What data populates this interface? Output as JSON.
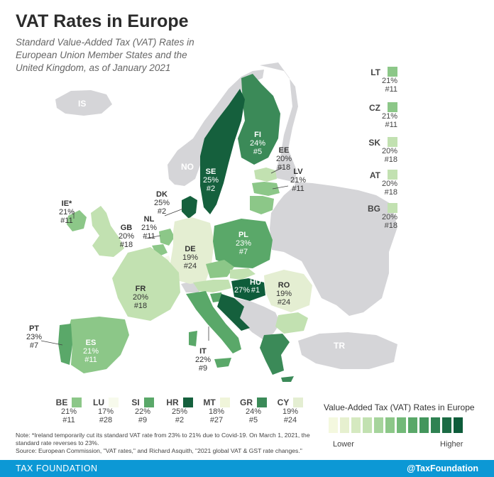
{
  "header": {
    "title": "VAT Rates in Europe",
    "subtitle": "Standard Value-Added Tax (VAT) Rates in European Union Member States and the United Kingdom, as of January 2021"
  },
  "colors": {
    "scale": [
      "#f4f8df",
      "#e6f0cf",
      "#d5e9c0",
      "#c2e1b1",
      "#a6d49c",
      "#8cc788",
      "#72b978",
      "#5aa869",
      "#43965c",
      "#2f8252",
      "#1b6b44",
      "#0e5c3a"
    ],
    "non_eu": "#d5d5d8",
    "rank_1_27": "#0e5c3a"
  },
  "map_labels": {
    "IS": "IS",
    "NO": "NO",
    "TR": "TR",
    "FI": {
      "code": "FI",
      "rate": "24%",
      "rank": "#5"
    },
    "SE": {
      "code": "SE",
      "rate": "25%",
      "rank": "#2"
    },
    "EE": {
      "code": "EE",
      "rate": "20%",
      "rank": "#18"
    },
    "LV": {
      "code": "LV",
      "rate": "21%",
      "rank": "#11"
    },
    "DK": {
      "code": "DK",
      "rate": "25%",
      "rank": "#2"
    },
    "IE": {
      "code": "IE*",
      "rate": "21%",
      "rank": "#11"
    },
    "GB": {
      "code": "GB",
      "rate": "20%",
      "rank": "#18"
    },
    "NL": {
      "code": "NL",
      "rate": "21%",
      "rank": "#11"
    },
    "DE": {
      "code": "DE",
      "rate": "19%",
      "rank": "#24"
    },
    "PL": {
      "code": "PL",
      "rate": "23%",
      "rank": "#7"
    },
    "FR": {
      "code": "FR",
      "rate": "20%",
      "rank": "#18"
    },
    "HU": {
      "code": "HU",
      "rate": "27%",
      "rank": "#1"
    },
    "RO": {
      "code": "RO",
      "rate": "19%",
      "rank": "#24"
    },
    "PT": {
      "code": "PT",
      "rate": "23%",
      "rank": "#7"
    },
    "ES": {
      "code": "ES",
      "rate": "21%",
      "rank": "#11"
    },
    "IT": {
      "code": "IT",
      "rate": "22%",
      "rank": "#9"
    }
  },
  "side_list": [
    {
      "code": "LT",
      "rate": "21%",
      "rank": "#11",
      "color": "#8cc788"
    },
    {
      "code": "CZ",
      "rate": "21%",
      "rank": "#11",
      "color": "#8cc788"
    },
    {
      "code": "SK",
      "rate": "20%",
      "rank": "#18",
      "color": "#c2e1b1"
    },
    {
      "code": "AT",
      "rate": "20%",
      "rank": "#18",
      "color": "#c2e1b1"
    },
    {
      "code": "BG",
      "rate": "20%",
      "rank": "#18",
      "color": "#c2e1b1"
    }
  ],
  "bottom_list": [
    {
      "code": "BE",
      "rate": "21%",
      "rank": "#11",
      "color": "#8cc788"
    },
    {
      "code": "LU",
      "rate": "17%",
      "rank": "#28",
      "color": "#f7faec"
    },
    {
      "code": "SI",
      "rate": "22%",
      "rank": "#9",
      "color": "#5aa869"
    },
    {
      "code": "HR",
      "rate": "25%",
      "rank": "#2",
      "color": "#15603d"
    },
    {
      "code": "MT",
      "rate": "18%",
      "rank": "#27",
      "color": "#f0f5da"
    },
    {
      "code": "GR",
      "rate": "24%",
      "rank": "#5",
      "color": "#3b8a58"
    },
    {
      "code": "CY",
      "rate": "19%",
      "rank": "#24",
      "color": "#e4eed2"
    }
  ],
  "legend": {
    "title": "Value-Added Tax (VAT) Rates in Europe",
    "low": "Lower",
    "high": "Higher"
  },
  "notes": {
    "note": "Note: *Ireland temporarily cut its standard VAT rate from 23% to 21% due to Covid-19. On March 1, 2021, the standard rate reverses to 23%.",
    "source": "Source: European Commission, \"VAT rates,\" and Richard Asquith, \"2021 global VAT & GST rate changes.\""
  },
  "footer": {
    "brand": "TAX FOUNDATION",
    "handle": "@TaxFoundation"
  }
}
